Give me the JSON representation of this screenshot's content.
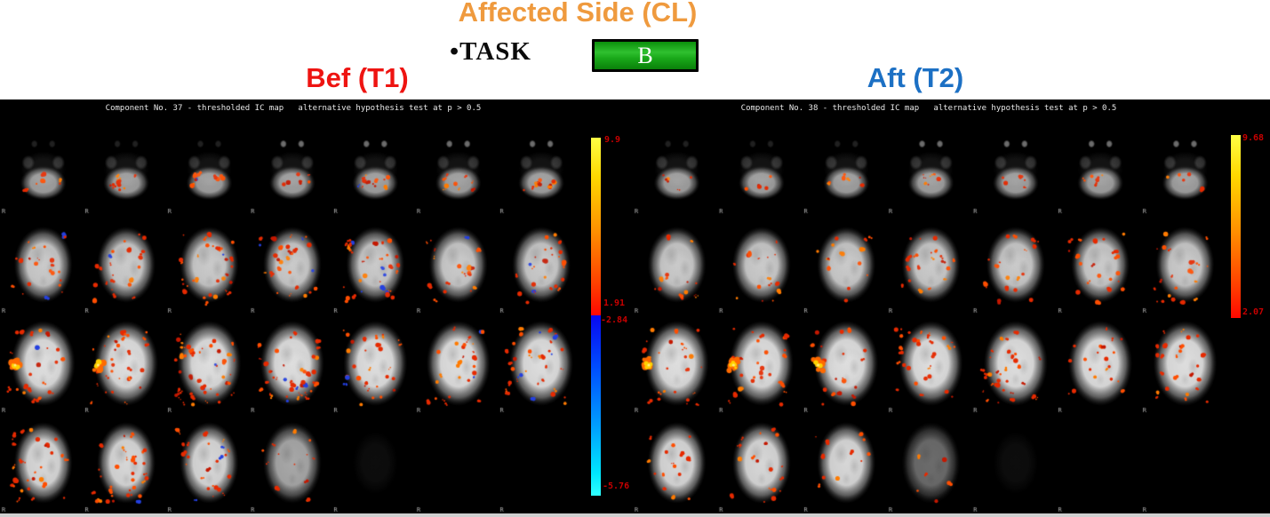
{
  "figure": {
    "title": "Affected Side (CL)",
    "task_label": "•TASK",
    "condition_label": "B",
    "colors": {
      "title": "#EF9A3E",
      "bef": "#EE1411",
      "aft": "#1C70C4",
      "cblabel": "#C80000",
      "box_green": "#1FA51F"
    }
  },
  "panels": [
    {
      "heading": "Bef (T1)",
      "header": "Component No. 37 - thresholded IC map   alternative hypothesis test at p > 0.5",
      "grid": {
        "rows": 4,
        "cols": 7,
        "last_row_slices": 4,
        "orientation_label": "R"
      },
      "colorbar": {
        "pos_max": "9.9",
        "pos_min": "1.91",
        "neg_max": "-2.84",
        "neg_min": "-5.76"
      }
    },
    {
      "heading": "Aft (T2)",
      "header": "Component No. 38 - thresholded IC map   alternative hypothesis test at p > 0.5",
      "grid": {
        "rows": 4,
        "cols": 7,
        "last_row_slices": 4,
        "orientation_label": "R"
      },
      "colorbar": {
        "pos_max": "9.68",
        "pos_min": "2.07"
      }
    }
  ]
}
